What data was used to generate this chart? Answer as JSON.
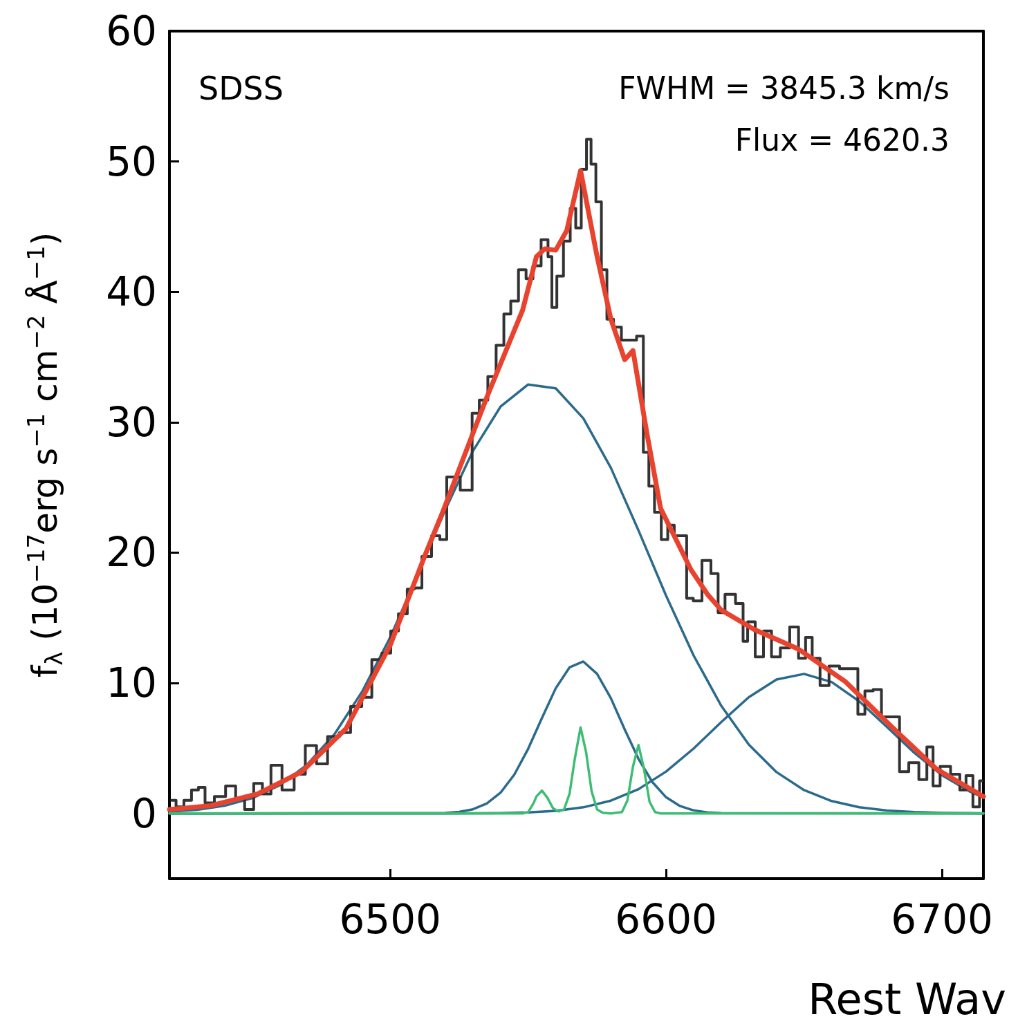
{
  "chart_data": {
    "type": "line",
    "xlabel": "Rest Wav",
    "ylabel": "f$_{λ}$ (10$^{−17}$erg s$^{−1}$ cm$^{−2}$ Å$^{−1}$)",
    "annotations": [
      "SDSS",
      "FWHM = 3845.3 km/s",
      "Flux = 4620.3"
    ],
    "xlim": [
      6420,
      6715
    ],
    "ylim": [
      -5,
      60
    ],
    "xticks": [
      6500,
      6600,
      6700
    ],
    "yticks": [
      0,
      10,
      20,
      30,
      40,
      50,
      60
    ],
    "grid": false,
    "marker": "none",
    "series": [
      {
        "color": "#2a6b8c",
        "x": [
          6420,
          6430,
          6440,
          6450,
          6460,
          6470,
          6480,
          6490,
          6500,
          6510,
          6520,
          6530,
          6540,
          6550,
          6560,
          6570,
          6580,
          6590,
          6600,
          6610,
          6620,
          6630,
          6640,
          6650,
          6660,
          6670,
          6680,
          6690,
          6700,
          6710,
          6715
        ],
        "values": [
          0.13,
          0.28,
          0.59,
          1.17,
          2.16,
          3.76,
          6.13,
          9.4,
          13.5,
          18.3,
          23.3,
          27.8,
          31.2,
          32.9,
          32.6,
          30.3,
          26.5,
          21.7,
          16.7,
          12.1,
          8.25,
          5.27,
          3.17,
          1.79,
          0.95,
          0.47,
          0.22,
          0.1,
          0.04,
          0.02,
          0.01
        ]
      },
      {
        "color": "#2a6b8c",
        "x": [
          6420,
          6520,
          6525,
          6530,
          6535,
          6540,
          6545,
          6550,
          6555,
          6560,
          6565,
          6570,
          6575,
          6580,
          6585,
          6590,
          6595,
          6600,
          6605,
          6610,
          6615,
          6620,
          6715
        ],
        "values": [
          0,
          0.04,
          0.12,
          0.32,
          0.76,
          1.59,
          2.98,
          4.95,
          7.31,
          9.6,
          11.2,
          11.65,
          10.7,
          8.83,
          6.44,
          4.18,
          2.41,
          1.24,
          0.57,
          0.23,
          0.08,
          0.03,
          0
        ]
      },
      {
        "color": "#2a6b8c",
        "x": [
          6420,
          6520,
          6540,
          6550,
          6560,
          6570,
          6580,
          6590,
          6600,
          6610,
          6620,
          6630,
          6640,
          6650,
          6660,
          6670,
          6680,
          6690,
          6700,
          6710,
          6715
        ],
        "values": [
          0,
          0,
          0.03,
          0.08,
          0.2,
          0.47,
          0.98,
          1.86,
          3.21,
          4.98,
          7.01,
          8.92,
          10.27,
          10.7,
          10.08,
          8.6,
          6.64,
          4.64,
          2.93,
          1.68,
          1.22
        ]
      },
      {
        "color": "#3dbd74",
        "x": [
          6420,
          6548,
          6550,
          6552,
          6553,
          6555,
          6557,
          6559,
          6561,
          6563,
          6565,
          6567,
          6569,
          6571,
          6573,
          6575,
          6577,
          6580,
          6584,
          6586,
          6588,
          6590,
          6592,
          6594,
          6596,
          6598,
          6715
        ],
        "values": [
          0,
          0,
          0.1,
          0.8,
          1.3,
          1.75,
          1.2,
          0.4,
          0.15,
          0.3,
          1.5,
          4.3,
          6.6,
          4.7,
          1.7,
          0.3,
          0.05,
          0,
          0.1,
          1.0,
          3.6,
          5.25,
          3.4,
          0.9,
          0.1,
          0,
          0
        ]
      },
      {
        "type": "step",
        "color": "#333333",
        "x": [
          6420.8,
          6424,
          6426.5,
          6429.5,
          6431.5,
          6434.3,
          6438.3,
          6442.4,
          6445.6,
          6448.9,
          6452.2,
          6455.2,
          6458.4,
          6463.2,
          6467.2,
          6471.3,
          6475.3,
          6479.3,
          6484,
          6487.3,
          6492.1,
          6494.6,
          6499.4,
          6501,
          6505,
          6507.4,
          6510,
          6513,
          6517,
          6519,
          6522,
          6528.8,
          6530.6,
          6534,
          6536.8,
          6540,
          6542.4,
          6545,
          6548,
          6550.5,
          6553,
          6556.4,
          6558,
          6559.2,
          6561.6,
          6564,
          6566.5,
          6568,
          6570.5,
          6571.8,
          6573.8,
          6575.3,
          6577.8,
          6579.3,
          6582.6,
          6585,
          6588,
          6590.6,
          6592.9,
          6594.6,
          6597,
          6599.5,
          6601.7,
          6604.2,
          6606.7,
          6608.2,
          6611.5,
          6614.5,
          6618,
          6619.7,
          6623,
          6627.3,
          6628.5,
          6630.6,
          6634,
          6636.6,
          6639.8,
          6643,
          6646.6,
          6649.4,
          6651.7,
          6654.2,
          6657.4,
          6660.7,
          6665,
          6668.2,
          6670.8,
          6673.3,
          6676.8,
          6679.3,
          6683.4,
          6685.8,
          6690.1,
          6693.1,
          6695.9,
          6697.6,
          6701,
          6705.2,
          6707.7,
          6709.7,
          6712.7,
          6714.5
        ],
        "values": [
          1.0,
          0.5,
          1.0,
          1.8,
          2.0,
          0.8,
          1.3,
          2.1,
          1.1,
          0.3,
          2.3,
          1.5,
          3.7,
          1.8,
          3.0,
          5.2,
          3.8,
          5.9,
          6.2,
          8.2,
          8.9,
          11.8,
          12.3,
          14.0,
          15.3,
          17.2,
          17.3,
          19.7,
          21.3,
          21.0,
          25.8,
          24.8,
          30.7,
          31.7,
          33.5,
          35.9,
          38.3,
          39.3,
          41.7,
          41.0,
          42.0,
          44.0,
          42.7,
          38.8,
          41.2,
          43.9,
          46.4,
          44.9,
          49.4,
          51.7,
          49.8,
          46.9,
          41.7,
          37.9,
          37.3,
          36.3,
          36.3,
          36.6,
          27.7,
          25.1,
          23.1,
          21.0,
          22.1,
          21.3,
          21.3,
          16.5,
          16.3,
          19.4,
          18.4,
          15.4,
          16.8,
          16.1,
          13.2,
          14.7,
          12.0,
          14.0,
          12.0,
          12.7,
          14.3,
          11.9,
          13.5,
          11.9,
          9.8,
          11.3,
          11.1,
          11.1,
          7.6,
          9.4,
          9.5,
          7.4,
          7.4,
          3.2,
          3.9,
          2.6,
          5.1,
          2.1,
          3.6,
          3.0,
          1.8,
          2.9,
          0.5,
          2.5
        ]
      },
      {
        "color": "#e8432e",
        "x": [
          6420,
          6435,
          6452,
          6468,
          6484,
          6500,
          6513,
          6519,
          6535,
          6548,
          6553,
          6556,
          6560,
          6564,
          6569,
          6575,
          6580,
          6585,
          6588,
          6593,
          6598,
          6609,
          6615,
          6620,
          6632,
          6648,
          6665,
          6682,
          6698,
          6715
        ],
        "values": [
          0.3,
          0.6,
          1.5,
          3.2,
          6.5,
          12.9,
          20.0,
          23.1,
          31.9,
          38.6,
          42.7,
          43.3,
          43.2,
          44.7,
          49.3,
          42.7,
          37.9,
          34.8,
          35.5,
          29.2,
          23.4,
          18.7,
          16.8,
          15.6,
          14.1,
          12.6,
          10.1,
          6.6,
          3.4,
          1.3
        ]
      }
    ]
  }
}
